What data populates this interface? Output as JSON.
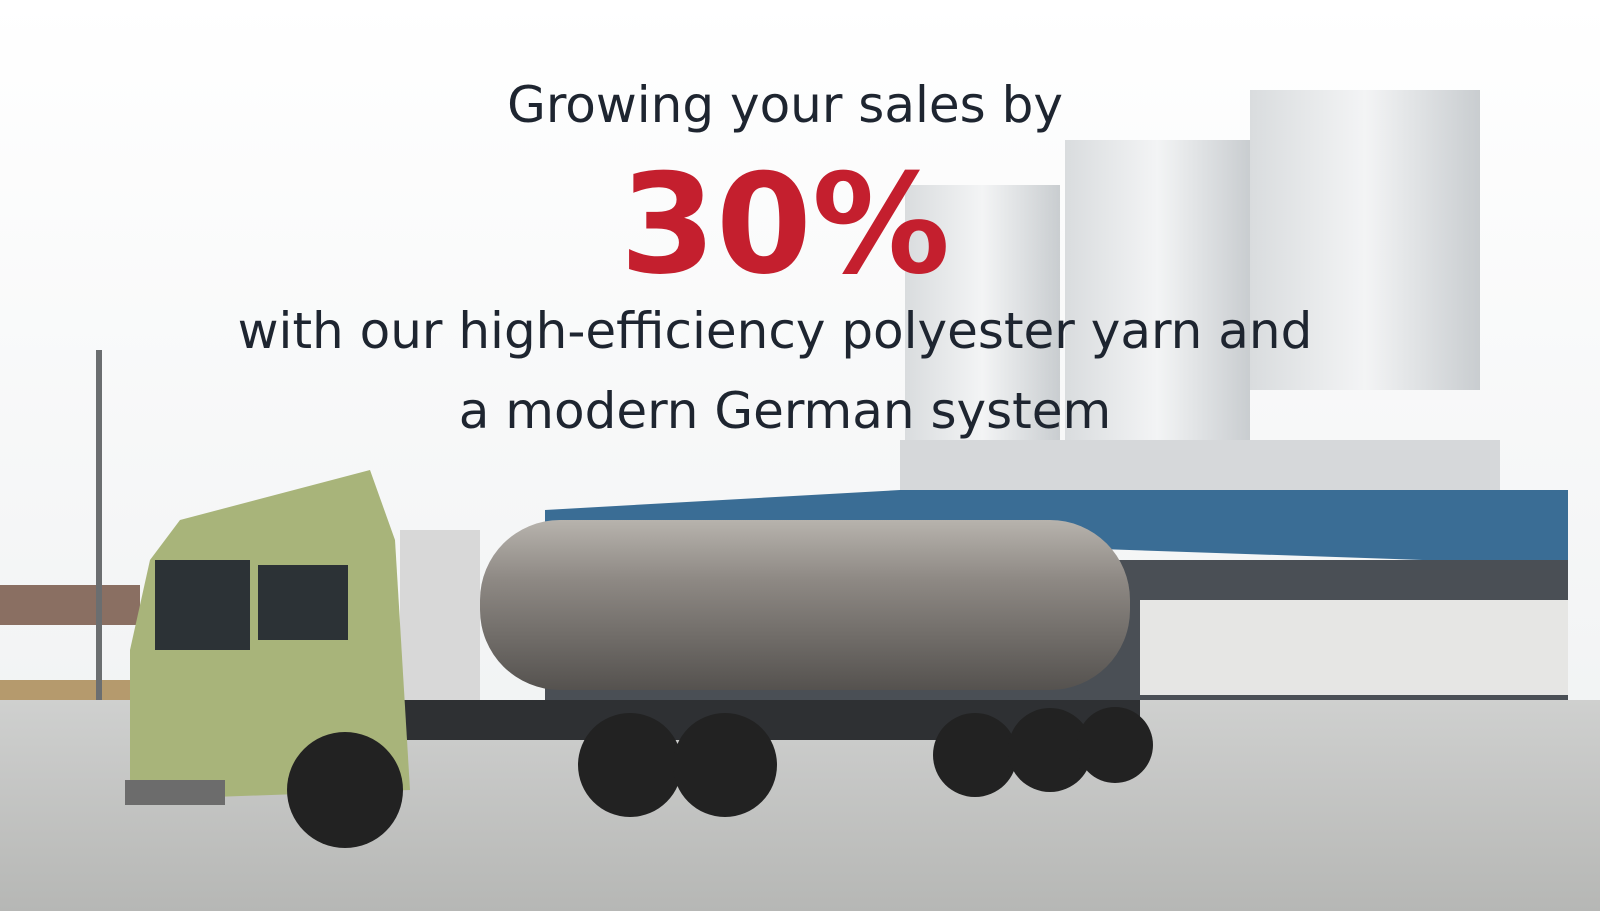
{
  "headline": {
    "line1": "Growing your sales by",
    "highlight": "30%",
    "line2": "with our high-efficiency polyester yarn and",
    "line3": "a modern German system"
  }
}
